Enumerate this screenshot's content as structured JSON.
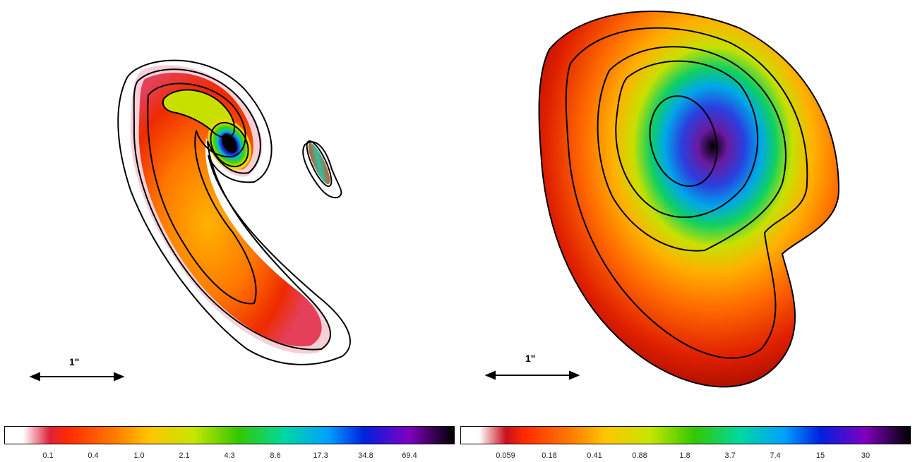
{
  "panels": [
    {
      "scale_bar_label": "1\"",
      "colorbar_ticks": [
        "0.1",
        "0.4",
        "1.0",
        "2.1",
        "4.3",
        "8.6",
        "17.3",
        "34.8",
        "69.4"
      ]
    },
    {
      "scale_bar_label": "1\"",
      "colorbar_ticks": [
        "0.059",
        "0.18",
        "0.41",
        "0.88",
        "1.8",
        "3.7",
        "7.4",
        "15",
        "30"
      ]
    }
  ],
  "colors": {
    "colormap": [
      "#ffffff",
      "#e8203a",
      "#ff2a00",
      "#ff7a00",
      "#ffc400",
      "#c8e600",
      "#33c800",
      "#00d9a0",
      "#00a0ff",
      "#0020e0",
      "#8000c0",
      "#000000"
    ],
    "contour": "#000000"
  }
}
